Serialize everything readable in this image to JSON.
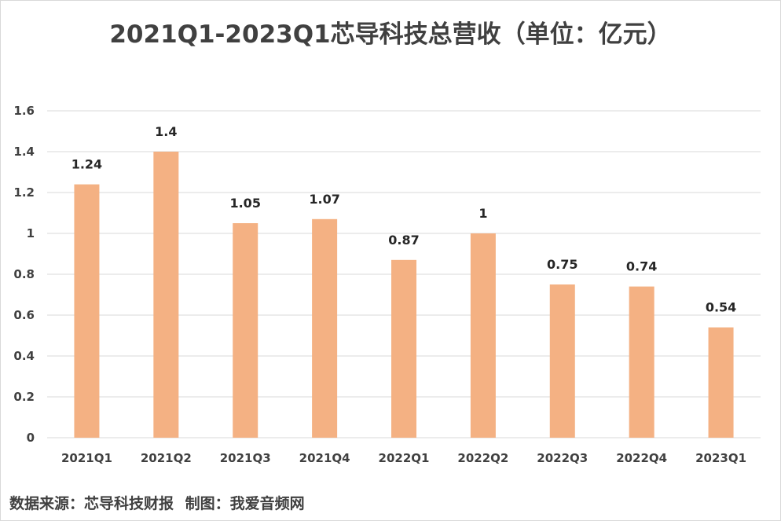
{
  "chart_data": {
    "type": "bar",
    "title": "2021Q1-2023Q1芯导科技总营收（单位：亿元）",
    "xlabel": "",
    "ylabel": "",
    "categories": [
      "2021Q1",
      "2021Q2",
      "2021Q3",
      "2021Q4",
      "2022Q1",
      "2022Q2",
      "2022Q3",
      "2022Q4",
      "2023Q1"
    ],
    "values": [
      1.24,
      1.4,
      1.05,
      1.07,
      0.87,
      1,
      0.75,
      0.74,
      0.54
    ],
    "data_labels": [
      "1.24",
      "1.4",
      "1.05",
      "1.07",
      "0.87",
      "1",
      "0.75",
      "0.74",
      "0.54"
    ],
    "ylim": [
      0,
      1.6
    ],
    "yticks": [
      "0",
      "0.2",
      "0.4",
      "0.6",
      "0.8",
      "1",
      "1.2",
      "1.4",
      "1.6"
    ],
    "grid": true,
    "legend": "none",
    "bar_color": "#F4B183",
    "grid_color": "#D9D9D9",
    "text_color": "#404040"
  },
  "footer": {
    "source": "数据来源：芯导科技财报",
    "made_by": "制图：我爱音频网"
  }
}
